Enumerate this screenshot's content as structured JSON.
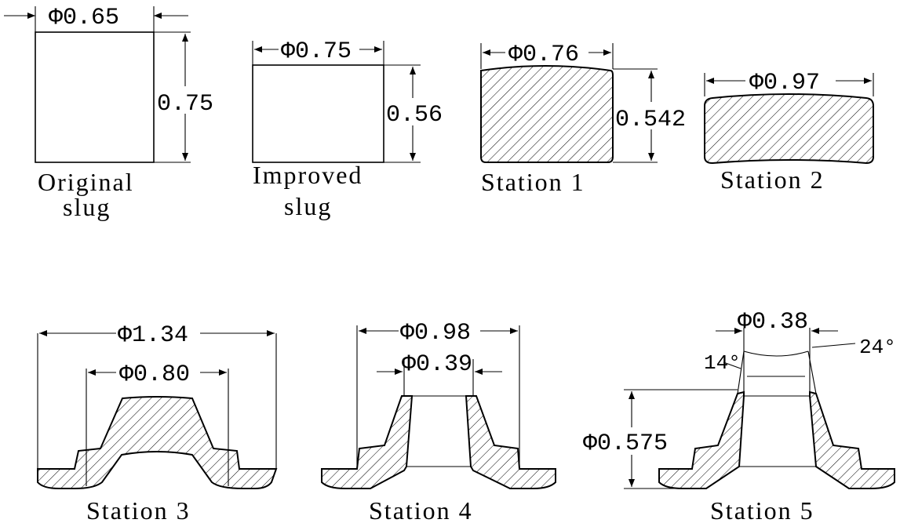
{
  "stages": {
    "original": {
      "dia": "Φ0.65",
      "height": "0.75",
      "caption_line1": "Original",
      "caption_line2": "slug"
    },
    "improved": {
      "dia": "Φ0.75",
      "height": "0.56",
      "caption_line1": "Improved",
      "caption_line2": "slug"
    },
    "station1": {
      "dia": "Φ0.76",
      "height": "0.542",
      "caption": "Station 1"
    },
    "station2": {
      "dia": "Φ0.97",
      "caption": "Station 2"
    },
    "station3": {
      "outer_dia": "Φ1.34",
      "inner_dia": "Φ0.80",
      "caption": "Station 3"
    },
    "station4": {
      "outer_dia": "Φ0.98",
      "inner_dia": "Φ0.39",
      "caption": "Station 4"
    },
    "station5": {
      "dia": "Φ0.38",
      "left_angle": "14°",
      "right_angle": "24°",
      "height": "Φ0.575",
      "caption": "Station 5"
    }
  },
  "colors": {
    "line": "#000000",
    "background": "#ffffff"
  }
}
